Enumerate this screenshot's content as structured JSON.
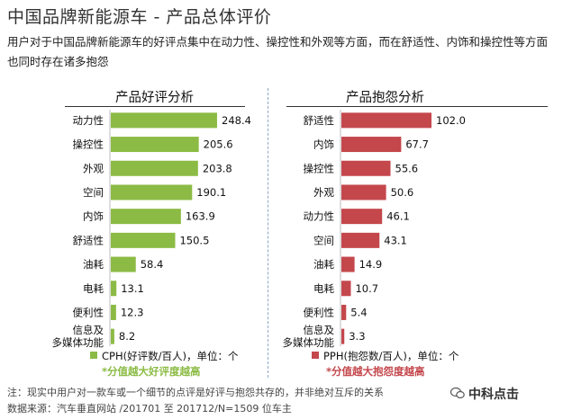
{
  "title": "中国品牌新能源车 - 产品总体评价",
  "subtitle": "用户对于中国品牌新能源车的好评点集中在动力性、操控性和外观等方面，而在舒适性、内饰和操控性等方面也同时存在诸多抱怨",
  "colors": {
    "positive": "#8cbb45",
    "negative": "#c4474c",
    "note_pos": "#8cbb45",
    "note_neg": "#c4474c"
  },
  "chart_data": [
    {
      "type": "bar",
      "orientation": "horizontal",
      "title": "产品好评分析",
      "categories": [
        "动力性",
        "操控性",
        "外观",
        "空间",
        "内饰",
        "舒适性",
        "油耗",
        "电耗",
        "便利性",
        "信息及多媒体功能"
      ],
      "category_lines": [
        [
          "动力性"
        ],
        [
          "操控性"
        ],
        [
          "外观"
        ],
        [
          "空间"
        ],
        [
          "内饰"
        ],
        [
          "舒适性"
        ],
        [
          "油耗"
        ],
        [
          "电耗"
        ],
        [
          "便利性"
        ],
        [
          "信息及",
          "多媒体功能"
        ]
      ],
      "values": [
        248.4,
        205.6,
        203.8,
        190.1,
        163.9,
        150.5,
        58.4,
        13.1,
        12.3,
        8.2
      ],
      "labels": [
        "248.4",
        "205.6",
        "203.8",
        "190.1",
        "163.9",
        "150.5",
        "58.4",
        "13.1",
        "12.3",
        "8.2"
      ],
      "legend": "CPH(好评数/百人)，单位：个",
      "note": "*分值越大好评度越高"
    },
    {
      "type": "bar",
      "orientation": "horizontal",
      "title": "产品抱怨分析",
      "categories": [
        "舒适性",
        "内饰",
        "操控性",
        "外观",
        "动力性",
        "空间",
        "油耗",
        "电耗",
        "便利性",
        "信息及多媒体功能"
      ],
      "category_lines": [
        [
          "舒适性"
        ],
        [
          "内饰"
        ],
        [
          "操控性"
        ],
        [
          "外观"
        ],
        [
          "动力性"
        ],
        [
          "空间"
        ],
        [
          "油耗"
        ],
        [
          "电耗"
        ],
        [
          "便利性"
        ],
        [
          "信息及",
          "多媒体功能"
        ]
      ],
      "values": [
        102.0,
        67.7,
        55.6,
        50.6,
        46.1,
        43.1,
        14.9,
        10.7,
        5.4,
        3.3
      ],
      "labels": [
        "102.0",
        "67.7",
        "55.6",
        "50.6",
        "46.1",
        "43.1",
        "14.9",
        "10.7",
        "5.4",
        "3.3"
      ],
      "legend": "PPH(抱怨数/百人)，单位：个",
      "note": "*分值越大抱怨度越高"
    }
  ],
  "footnote": "注：现实中用户对一款车或一个细节的点评是好评与抱怨共存的，并非绝对互斥的关系",
  "source": "数据来源：汽车垂直网站 /201701 至 201712/N=1509 位车主",
  "watermark": "中科点击"
}
